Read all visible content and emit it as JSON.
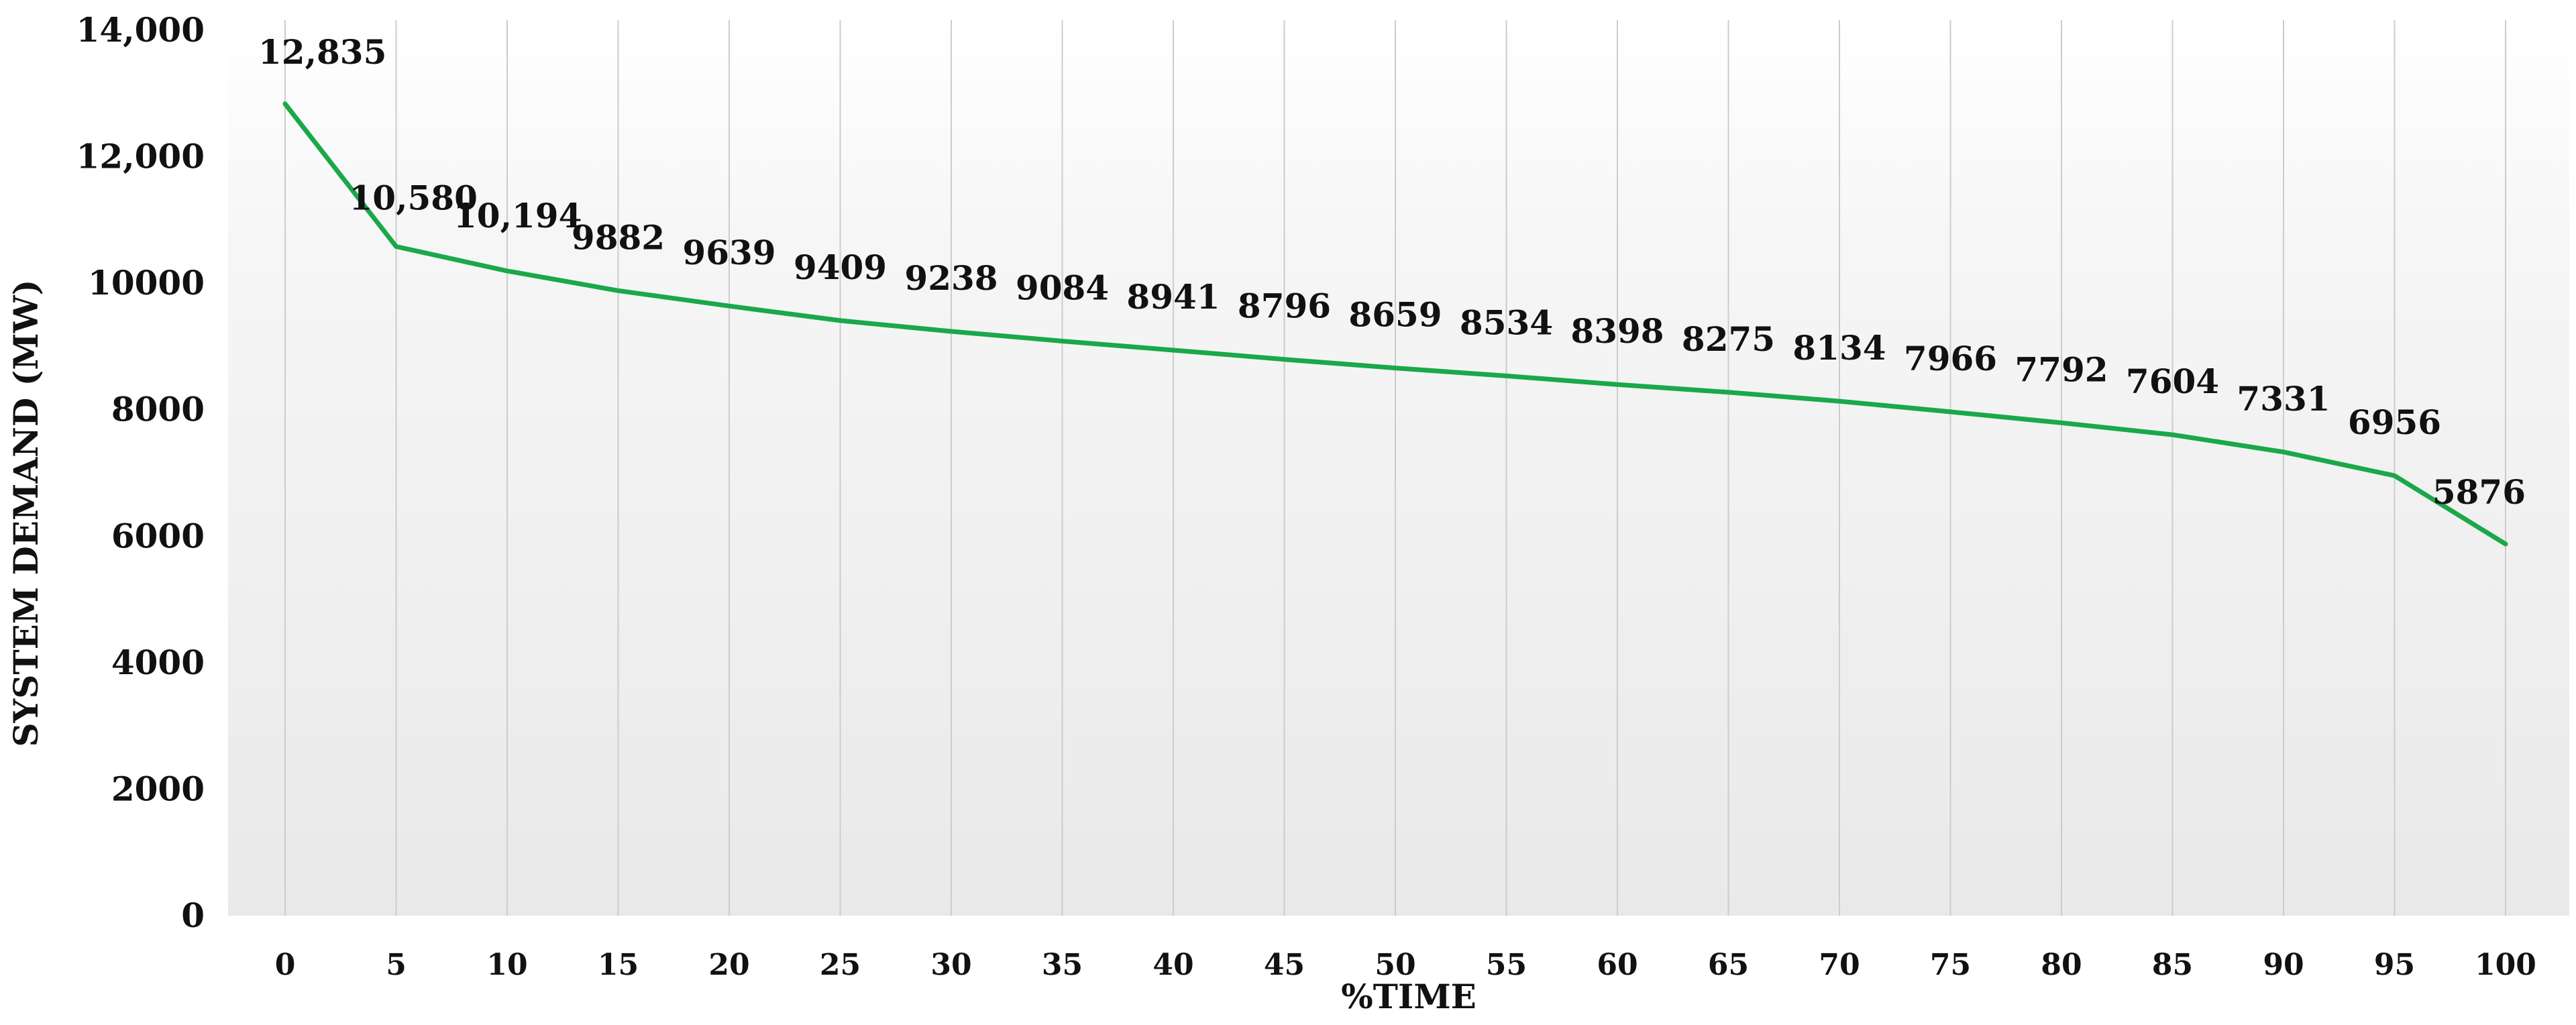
{
  "chart_data": {
    "type": "line",
    "title": "",
    "xlabel": "%TIME",
    "ylabel": "SYSTEM DEMAND (MW)",
    "x": [
      0,
      5,
      10,
      15,
      20,
      25,
      30,
      35,
      40,
      45,
      50,
      55,
      60,
      65,
      70,
      75,
      80,
      85,
      90,
      95,
      100
    ],
    "x_tick_labels": [
      "0",
      "5",
      "10",
      "15",
      "20",
      "25",
      "30",
      "35",
      "40",
      "45",
      "50",
      "55",
      "60",
      "65",
      "70",
      "75",
      "80",
      "85",
      "90",
      "95",
      "100"
    ],
    "series": [
      {
        "values": [
          12835,
          10580,
          10194,
          9882,
          9639,
          9409,
          9238,
          9084,
          8941,
          8796,
          8659,
          8534,
          8398,
          8275,
          8134,
          7966,
          7792,
          7604,
          7331,
          6956,
          5876
        ],
        "data_labels": [
          "12,835",
          "10,580",
          "10,194",
          "9882",
          "9639",
          "9409",
          "9238",
          "9084",
          "8941",
          "8796",
          "8659",
          "8534",
          "8398",
          "8275",
          "8134",
          "7966",
          "7792",
          "7604",
          "7331",
          "6956",
          "5876"
        ],
        "color": "#1aa84a"
      }
    ],
    "y_tick_values": [
      0,
      2000,
      4000,
      6000,
      8000,
      10000,
      12000,
      14000
    ],
    "y_tick_labels": [
      "0",
      "2000",
      "4000",
      "6000",
      "8000",
      "10000",
      "12,000",
      "14,000"
    ],
    "ylim": [
      0,
      14000
    ],
    "xlim": [
      0,
      100
    ],
    "grid": "vertical",
    "legend": "none",
    "background": "light gray gradient"
  }
}
